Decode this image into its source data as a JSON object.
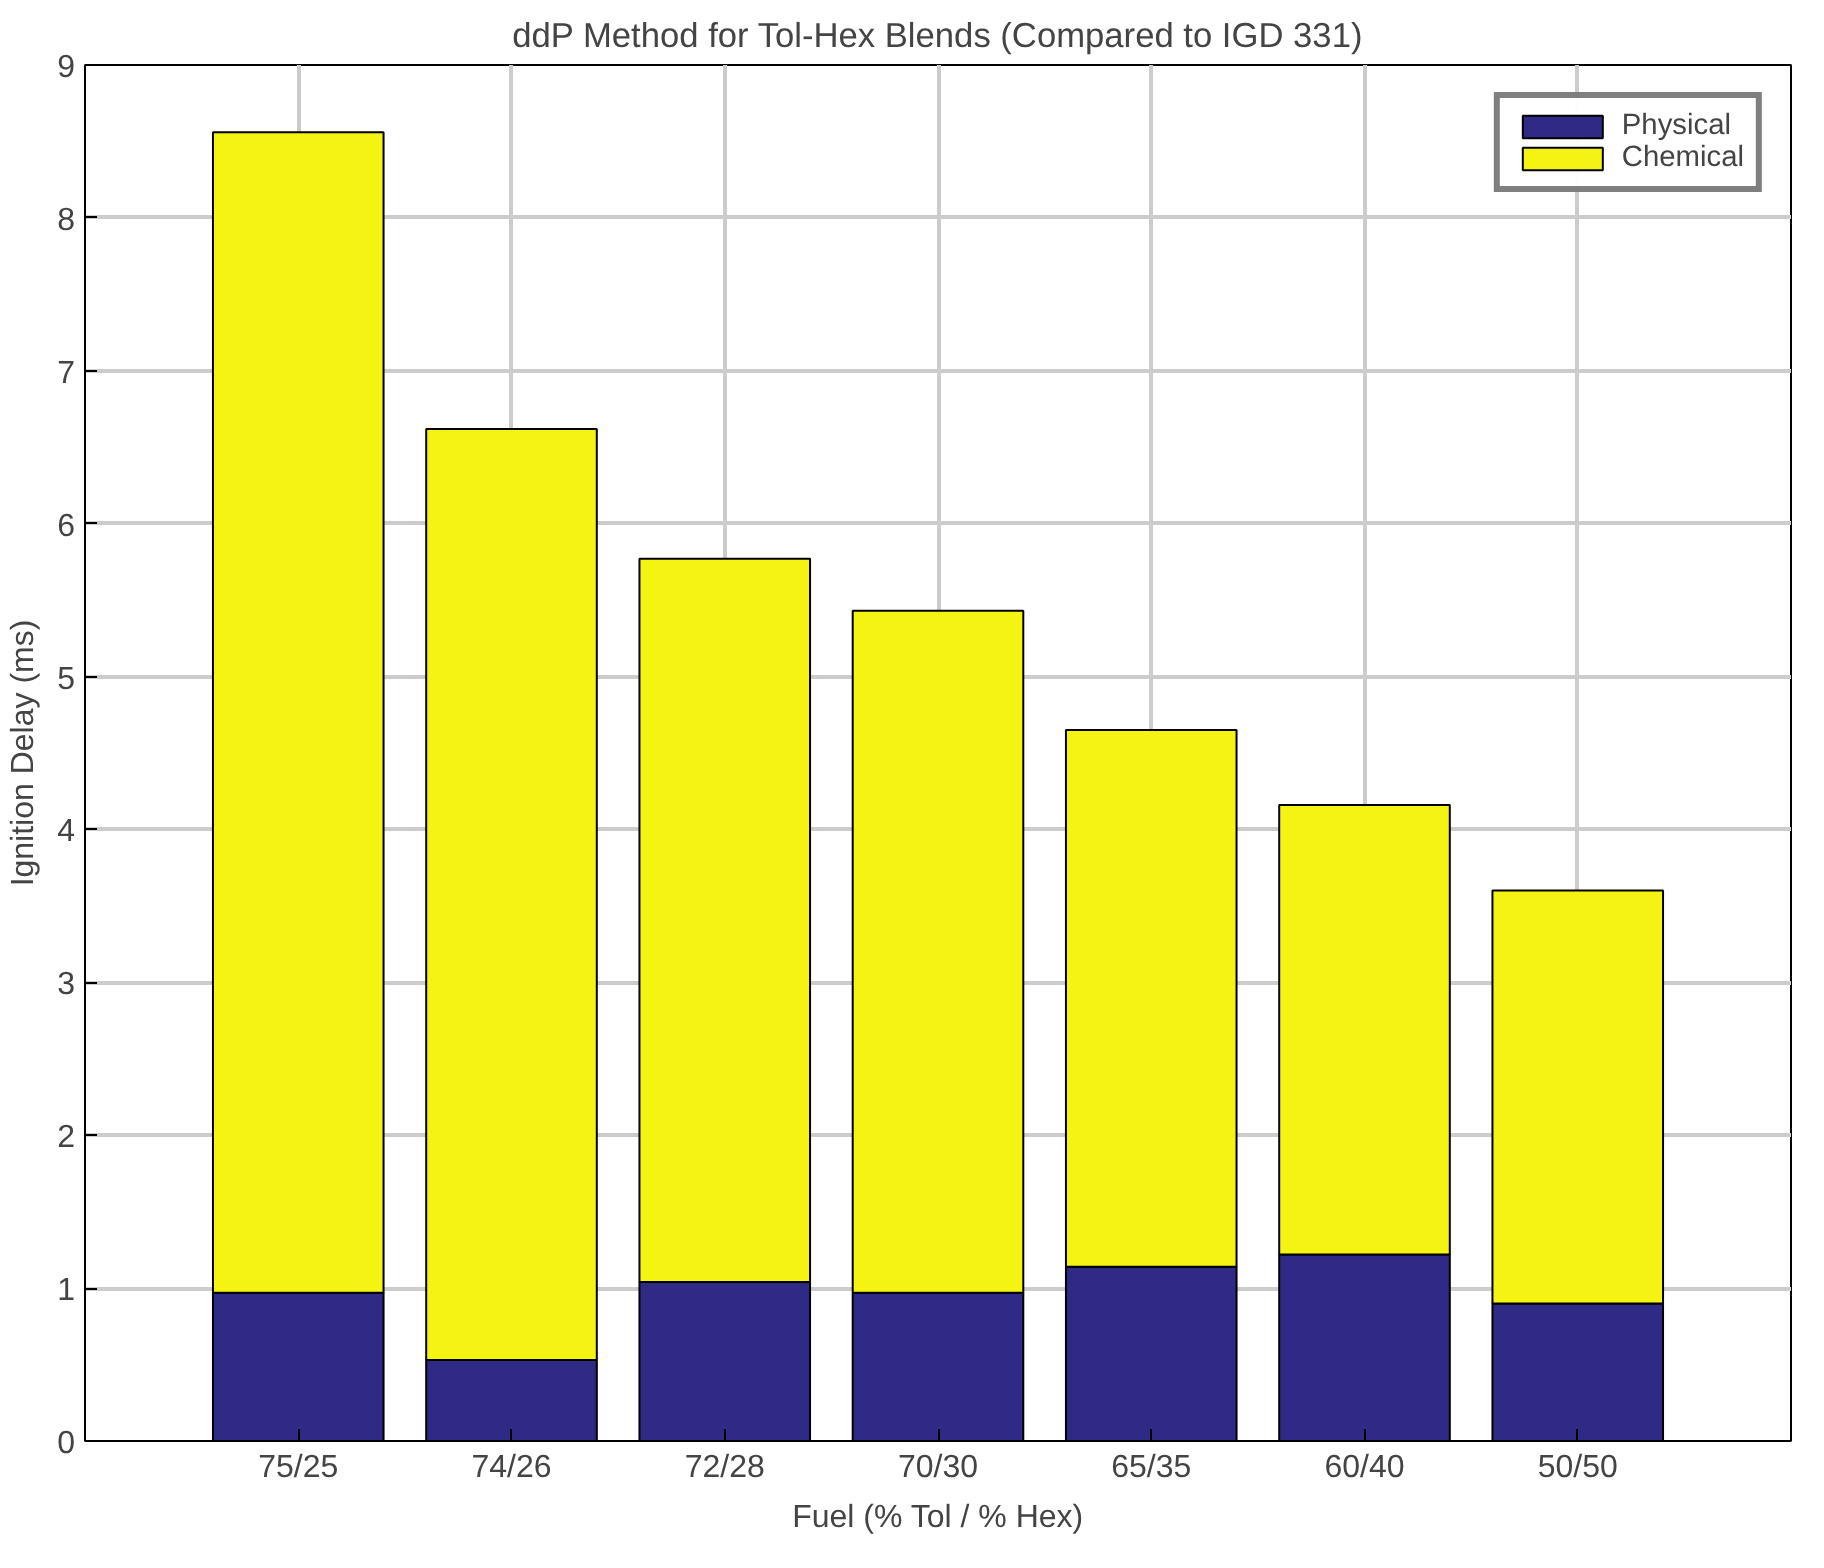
{
  "chart_data": {
    "type": "bar",
    "stacked": true,
    "title": "ddP Method for Tol-Hex Blends (Compared to IGD 331)",
    "xlabel": "Fuel (% Tol / % Hex)",
    "ylabel": "Ignition Delay (ms)",
    "categories": [
      "75/25",
      "74/26",
      "72/28",
      "70/30",
      "65/35",
      "60/40",
      "50/50"
    ],
    "series": [
      {
        "name": "Physical",
        "color": "#2e2a86",
        "values": [
          0.97,
          0.53,
          1.04,
          0.97,
          1.14,
          1.22,
          0.9
        ]
      },
      {
        "name": "Chemical",
        "color": "#f4f312",
        "values": [
          7.59,
          6.09,
          4.73,
          4.46,
          3.51,
          2.94,
          2.7
        ]
      }
    ],
    "ylim": [
      0,
      9
    ],
    "yticks": [
      0,
      1,
      2,
      3,
      4,
      5,
      6,
      7,
      8,
      9
    ],
    "grid": true,
    "legend": "top right"
  }
}
